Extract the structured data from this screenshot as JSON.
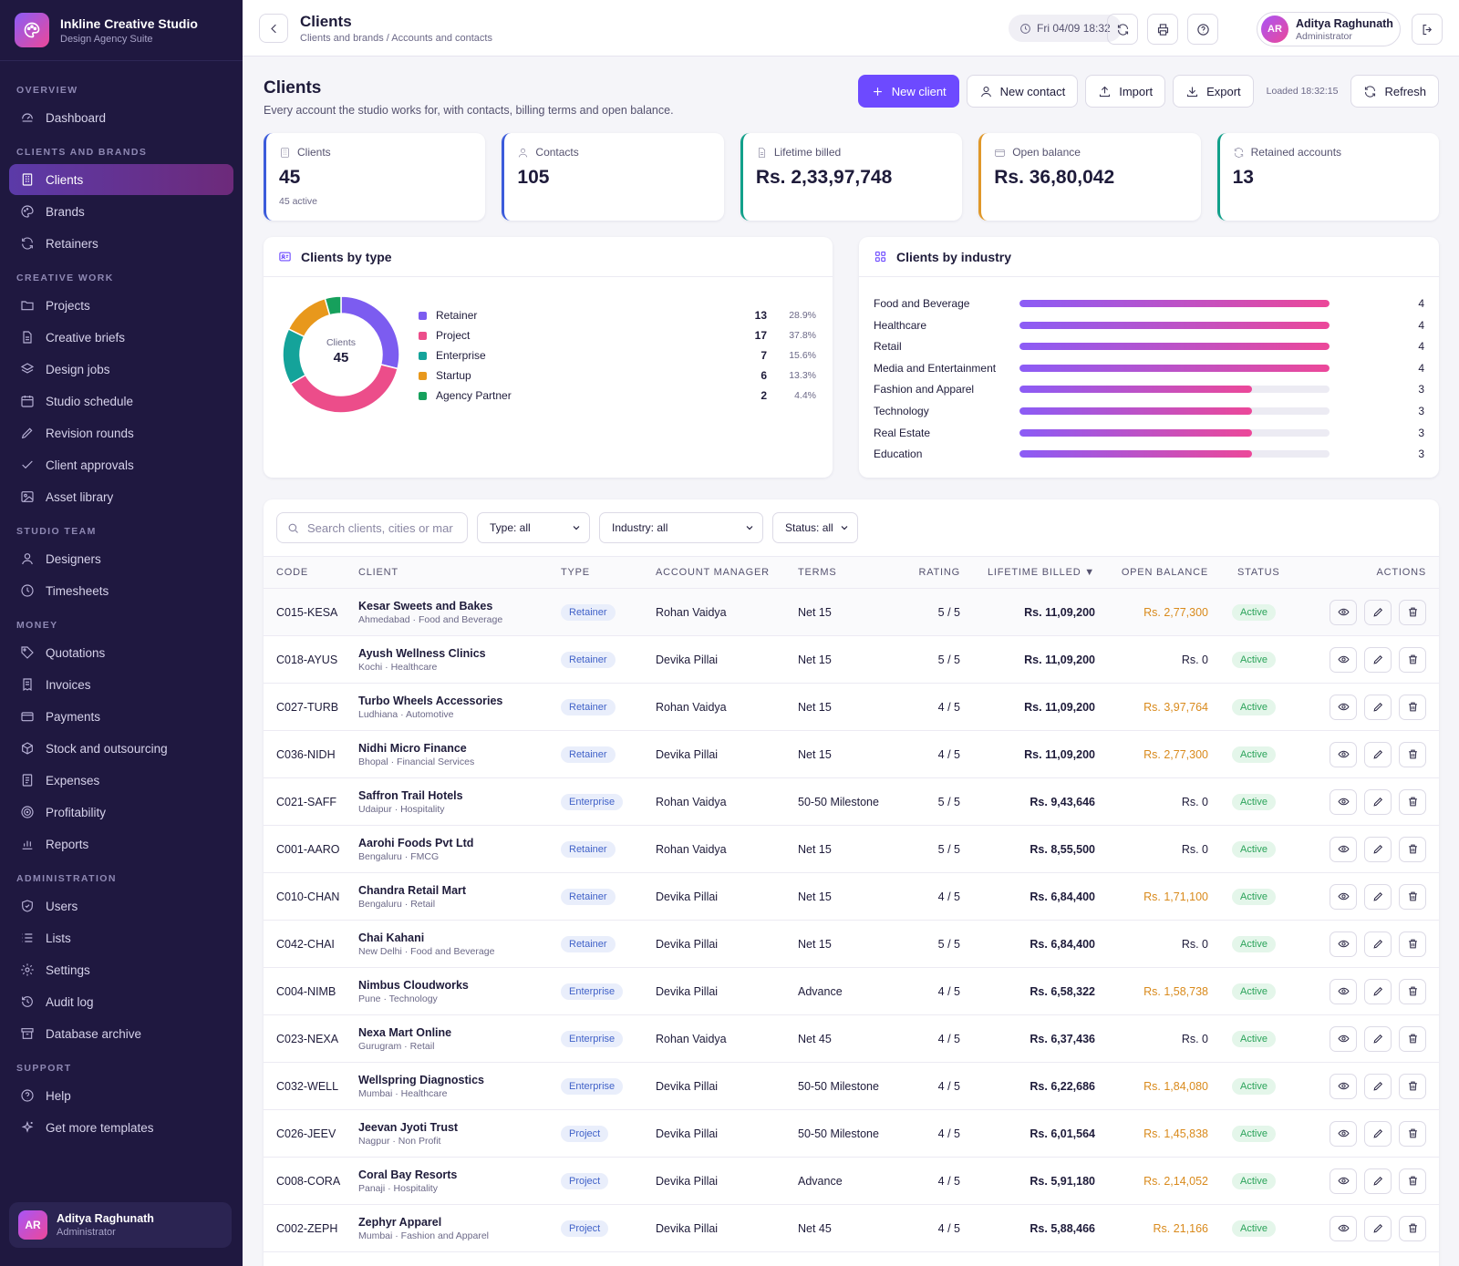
{
  "app": {
    "name": "Inkline Creative Studio",
    "subtitle": "Design Agency Suite"
  },
  "sidebar": {
    "sections": [
      {
        "label": "OVERVIEW",
        "items": [
          {
            "label": "Dashboard",
            "icon": "dashboard-icon"
          }
        ]
      },
      {
        "label": "CLIENTS AND BRANDS",
        "items": [
          {
            "label": "Clients",
            "icon": "building-icon",
            "active": true
          },
          {
            "label": "Brands",
            "icon": "palette-icon"
          },
          {
            "label": "Retainers",
            "icon": "refresh-icon"
          }
        ]
      },
      {
        "label": "CREATIVE WORK",
        "items": [
          {
            "label": "Projects",
            "icon": "folder-icon"
          },
          {
            "label": "Creative briefs",
            "icon": "file-icon"
          },
          {
            "label": "Design jobs",
            "icon": "layers-icon"
          },
          {
            "label": "Studio schedule",
            "icon": "calendar-icon"
          },
          {
            "label": "Revision rounds",
            "icon": "pencil-icon"
          },
          {
            "label": "Client approvals",
            "icon": "check-icon"
          },
          {
            "label": "Asset library",
            "icon": "image-icon"
          }
        ]
      },
      {
        "label": "STUDIO TEAM",
        "items": [
          {
            "label": "Designers",
            "icon": "user-icon"
          },
          {
            "label": "Timesheets",
            "icon": "clock-icon"
          }
        ]
      },
      {
        "label": "MONEY",
        "items": [
          {
            "label": "Quotations",
            "icon": "tag-icon"
          },
          {
            "label": "Invoices",
            "icon": "receipt-icon"
          },
          {
            "label": "Payments",
            "icon": "card-icon"
          },
          {
            "label": "Stock and outsourcing",
            "icon": "box-icon"
          },
          {
            "label": "Expenses",
            "icon": "list-icon"
          },
          {
            "label": "Profitability",
            "icon": "target-icon"
          },
          {
            "label": "Reports",
            "icon": "bar-chart-icon"
          }
        ]
      },
      {
        "label": "ADMINISTRATION",
        "items": [
          {
            "label": "Users",
            "icon": "shield-icon"
          },
          {
            "label": "Lists",
            "icon": "lines-icon"
          },
          {
            "label": "Settings",
            "icon": "gear-icon"
          },
          {
            "label": "Audit log",
            "icon": "history-icon"
          },
          {
            "label": "Database archive",
            "icon": "archive-icon"
          }
        ]
      },
      {
        "label": "SUPPORT",
        "items": [
          {
            "label": "Help",
            "icon": "help-icon"
          },
          {
            "label": "Get more templates",
            "icon": "sparkle-icon"
          }
        ]
      }
    ],
    "user": {
      "initials": "AR",
      "name": "Aditya Raghunath",
      "role": "Administrator"
    }
  },
  "topbar": {
    "title": "Clients",
    "breadcrumb": "Clients and brands / Accounts and contacts",
    "datetime": "Fri 04/09 18:32",
    "user": {
      "initials": "AR",
      "name": "Aditya Raghunath",
      "role": "Administrator"
    }
  },
  "page": {
    "title": "Clients",
    "description": "Every account the studio works for, with contacts, billing terms and open balance.",
    "buttons": {
      "new_client": "New client",
      "new_contact": "New contact",
      "import": "Import",
      "export": "Export",
      "refresh": "Refresh"
    },
    "loaded": "Loaded 18:32:15"
  },
  "kpis": [
    {
      "label": "Clients",
      "value": "45",
      "sub": "45 active",
      "color": "#3b5bdb",
      "icon": "building-icon"
    },
    {
      "label": "Contacts",
      "value": "105",
      "sub": "",
      "color": "#3b5bdb",
      "icon": "user-icon"
    },
    {
      "label": "Lifetime billed",
      "value": "Rs. 2,33,97,748",
      "sub": "",
      "color": "#12a08a",
      "icon": "file-icon"
    },
    {
      "label": "Open balance",
      "value": "Rs. 36,80,042",
      "sub": "",
      "color": "#e0982a",
      "icon": "card-icon"
    },
    {
      "label": "Retained accounts",
      "value": "13",
      "sub": "",
      "color": "#12a08a",
      "icon": "refresh-icon"
    }
  ],
  "clients_by_type": {
    "title": "Clients by type",
    "center_label": "Clients",
    "center_value": "45",
    "segments": [
      {
        "name": "Retainer",
        "count": 13,
        "pct": "28.9%",
        "color": "#7c5cf0"
      },
      {
        "name": "Project",
        "count": 17,
        "pct": "37.8%",
        "color": "#ec4d8a"
      },
      {
        "name": "Enterprise",
        "count": 7,
        "pct": "15.6%",
        "color": "#14a39a"
      },
      {
        "name": "Startup",
        "count": 6,
        "pct": "13.3%",
        "color": "#e8981c"
      },
      {
        "name": "Agency Partner",
        "count": 2,
        "pct": "4.4%",
        "color": "#16a05c"
      }
    ]
  },
  "clients_by_industry": {
    "title": "Clients by industry",
    "max": 4,
    "rows": [
      {
        "name": "Food and Beverage",
        "value": 4
      },
      {
        "name": "Healthcare",
        "value": 4
      },
      {
        "name": "Retail",
        "value": 4
      },
      {
        "name": "Media and Entertainment",
        "value": 4
      },
      {
        "name": "Fashion and Apparel",
        "value": 3
      },
      {
        "name": "Technology",
        "value": 3
      },
      {
        "name": "Real Estate",
        "value": 3
      },
      {
        "name": "Education",
        "value": 3
      }
    ]
  },
  "filters": {
    "search_placeholder": "Search clients, cities or mar",
    "type": "Type: all",
    "industry": "Industry: all",
    "status": "Status: all"
  },
  "table": {
    "headers": {
      "code": "CODE",
      "client": "CLIENT",
      "type": "TYPE",
      "manager": "ACCOUNT MANAGER",
      "terms": "TERMS",
      "rating": "RATING",
      "billed": "LIFETIME BILLED ▼",
      "open": "OPEN BALANCE",
      "status": "STATUS",
      "actions": "ACTIONS"
    },
    "rows": [
      {
        "code": "C015-KESA",
        "name": "Kesar Sweets and Bakes",
        "sub": "Ahmedabad · Food and Beverage",
        "type": "Retainer",
        "manager": "Rohan Vaidya",
        "terms": "Net 15",
        "rating": "5 / 5",
        "billed": "Rs. 11,09,200",
        "open": "Rs. 2,77,300",
        "status": "Active"
      },
      {
        "code": "C018-AYUS",
        "name": "Ayush Wellness Clinics",
        "sub": "Kochi · Healthcare",
        "type": "Retainer",
        "manager": "Devika Pillai",
        "terms": "Net 15",
        "rating": "5 / 5",
        "billed": "Rs. 11,09,200",
        "open": "Rs. 0",
        "status": "Active"
      },
      {
        "code": "C027-TURB",
        "name": "Turbo Wheels Accessories",
        "sub": "Ludhiana · Automotive",
        "type": "Retainer",
        "manager": "Rohan Vaidya",
        "terms": "Net 15",
        "rating": "4 / 5",
        "billed": "Rs. 11,09,200",
        "open": "Rs. 3,97,764",
        "status": "Active"
      },
      {
        "code": "C036-NIDH",
        "name": "Nidhi Micro Finance",
        "sub": "Bhopal · Financial Services",
        "type": "Retainer",
        "manager": "Devika Pillai",
        "terms": "Net 15",
        "rating": "4 / 5",
        "billed": "Rs. 11,09,200",
        "open": "Rs. 2,77,300",
        "status": "Active"
      },
      {
        "code": "C021-SAFF",
        "name": "Saffron Trail Hotels",
        "sub": "Udaipur · Hospitality",
        "type": "Enterprise",
        "manager": "Rohan Vaidya",
        "terms": "50-50 Milestone",
        "rating": "5 / 5",
        "billed": "Rs. 9,43,646",
        "open": "Rs. 0",
        "status": "Active"
      },
      {
        "code": "C001-AARO",
        "name": "Aarohi Foods Pvt Ltd",
        "sub": "Bengaluru · FMCG",
        "type": "Retainer",
        "manager": "Rohan Vaidya",
        "terms": "Net 15",
        "rating": "5 / 5",
        "billed": "Rs. 8,55,500",
        "open": "Rs. 0",
        "status": "Active"
      },
      {
        "code": "C010-CHAN",
        "name": "Chandra Retail Mart",
        "sub": "Bengaluru · Retail",
        "type": "Retainer",
        "manager": "Devika Pillai",
        "terms": "Net 15",
        "rating": "4 / 5",
        "billed": "Rs. 6,84,400",
        "open": "Rs. 1,71,100",
        "status": "Active"
      },
      {
        "code": "C042-CHAI",
        "name": "Chai Kahani",
        "sub": "New Delhi · Food and Beverage",
        "type": "Retainer",
        "manager": "Devika Pillai",
        "terms": "Net 15",
        "rating": "5 / 5",
        "billed": "Rs. 6,84,400",
        "open": "Rs. 0",
        "status": "Active"
      },
      {
        "code": "C004-NIMB",
        "name": "Nimbus Cloudworks",
        "sub": "Pune · Technology",
        "type": "Enterprise",
        "manager": "Devika Pillai",
        "terms": "Advance",
        "rating": "4 / 5",
        "billed": "Rs. 6,58,322",
        "open": "Rs. 1,58,738",
        "status": "Active"
      },
      {
        "code": "C023-NEXA",
        "name": "Nexa Mart Online",
        "sub": "Gurugram · Retail",
        "type": "Enterprise",
        "manager": "Rohan Vaidya",
        "terms": "Net 45",
        "rating": "4 / 5",
        "billed": "Rs. 6,37,436",
        "open": "Rs. 0",
        "status": "Active"
      },
      {
        "code": "C032-WELL",
        "name": "Wellspring Diagnostics",
        "sub": "Mumbai · Healthcare",
        "type": "Enterprise",
        "manager": "Devika Pillai",
        "terms": "50-50 Milestone",
        "rating": "4 / 5",
        "billed": "Rs. 6,22,686",
        "open": "Rs. 1,84,080",
        "status": "Active"
      },
      {
        "code": "C026-JEEV",
        "name": "Jeevan Jyoti Trust",
        "sub": "Nagpur · Non Profit",
        "type": "Project",
        "manager": "Devika Pillai",
        "terms": "50-50 Milestone",
        "rating": "4 / 5",
        "billed": "Rs. 6,01,564",
        "open": "Rs. 1,45,838",
        "status": "Active"
      },
      {
        "code": "C008-CORA",
        "name": "Coral Bay Resorts",
        "sub": "Panaji · Hospitality",
        "type": "Project",
        "manager": "Devika Pillai",
        "terms": "Advance",
        "rating": "4 / 5",
        "billed": "Rs. 5,91,180",
        "open": "Rs. 2,14,052",
        "status": "Active"
      },
      {
        "code": "C002-ZEPH",
        "name": "Zephyr Apparel",
        "sub": "Mumbai · Fashion and Apparel",
        "type": "Project",
        "manager": "Devika Pillai",
        "terms": "Net 45",
        "rating": "4 / 5",
        "billed": "Rs. 5,88,466",
        "open": "Rs. 21,166",
        "status": "Active"
      }
    ]
  }
}
